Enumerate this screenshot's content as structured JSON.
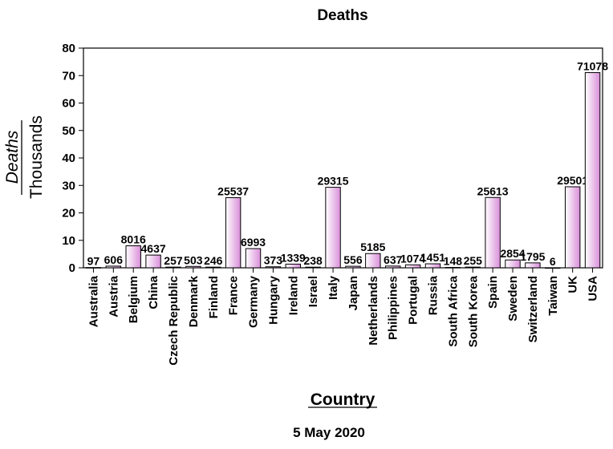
{
  "chart_data": {
    "type": "bar",
    "title": "Deaths",
    "ylabel": "Deaths",
    "ylabel_unit": "Thousands",
    "xlabel": "Country",
    "footnote": "5 May 2020",
    "ylim": [
      0,
      80
    ],
    "yticks": [
      0,
      10,
      20,
      30,
      40,
      50,
      60,
      70,
      80
    ],
    "grid": false,
    "bar_color_light": "#ffffff",
    "bar_color_dark": "#d98ed9",
    "categories": [
      "Australia",
      "Austria",
      "Belgium",
      "China",
      "Czech Republic",
      "Denmark",
      "Finland",
      "France",
      "Germany",
      "Hungary",
      "Ireland",
      "Israel",
      "Italy",
      "Japan",
      "Netherlands",
      "Philippines",
      "Portugal",
      "Russia",
      "South Africa",
      "South Korea",
      "Spain",
      "Sweden",
      "Switzerland",
      "Taiwan",
      "UK",
      "USA"
    ],
    "values": [
      97,
      606,
      8016,
      4637,
      257,
      503,
      246,
      25537,
      6993,
      373,
      1339,
      238,
      29315,
      556,
      5185,
      637,
      1074,
      1451,
      148,
      255,
      25613,
      2854,
      1795,
      6,
      29501,
      71078
    ],
    "data_labels": [
      "97",
      "606",
      "8016",
      "4637",
      "257",
      "503",
      "246",
      "25537",
      "6993",
      "373",
      "1339",
      "238",
      "29315",
      "556",
      "5185",
      "637",
      "1074",
      "1451",
      "148",
      "255",
      "25613",
      "2854",
      "1795",
      "6",
      "29501",
      "71078"
    ]
  }
}
